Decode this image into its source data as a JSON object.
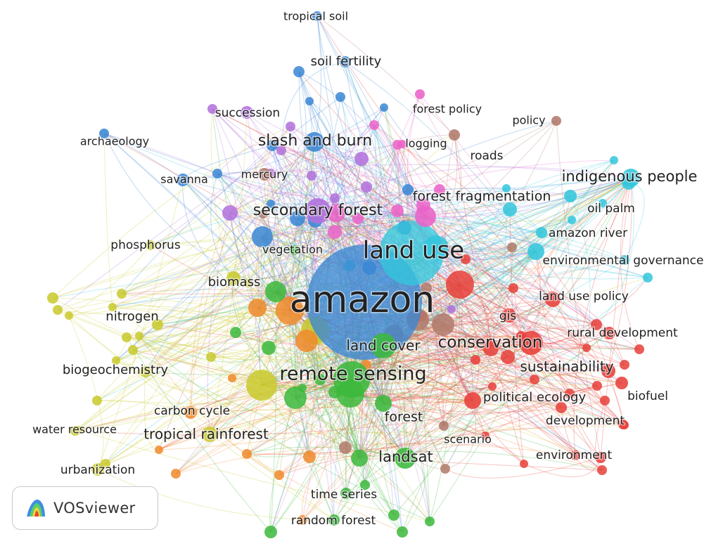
{
  "app": {
    "name": "VOSviewer",
    "logo_text": "VOSviewer"
  },
  "legend": {
    "colors": {
      "red": "#e8403a",
      "green": "#3cb83c",
      "blue": "#3a86d4",
      "yellow": "#c9c92c",
      "purple": "#b070dc",
      "cyan": "#33c6dc",
      "orange": "#f08a2c",
      "brown": "#b07a6a",
      "pink": "#ea62c8"
    }
  },
  "network": {
    "nodes": [
      {
        "id": "amazon",
        "label": "amazon",
        "cluster": "blue",
        "weight": 10
      },
      {
        "id": "land_use",
        "label": "land use",
        "cluster": "cyan",
        "weight": 6
      },
      {
        "id": "remote_sensing",
        "label": "remote sensing",
        "cluster": "green",
        "weight": 5
      },
      {
        "id": "land_cover",
        "label": "land cover",
        "cluster": "green",
        "weight": 3.4
      },
      {
        "id": "conservation",
        "label": "conservation",
        "cluster": "red",
        "weight": 4
      },
      {
        "id": "sustainability",
        "label": "sustainability",
        "cluster": "red",
        "weight": 3.2
      },
      {
        "id": "secondary_forest",
        "label": "secondary forest",
        "cluster": "purple",
        "weight": 3.8
      },
      {
        "id": "slash_and_burn",
        "label": "slash and burn",
        "cluster": "blue",
        "weight": 3.4
      },
      {
        "id": "indigenous_people",
        "label": "indigenous people",
        "cluster": "cyan",
        "weight": 3.4
      },
      {
        "id": "forest_fragmentation",
        "label": "forest fragmentation",
        "cluster": "pink",
        "weight": 3
      },
      {
        "id": "tropical_rainforest",
        "label": "tropical rainforest",
        "cluster": "yellow",
        "weight": 3
      },
      {
        "id": "landsat",
        "label": "landsat",
        "cluster": "green",
        "weight": 3
      },
      {
        "id": "political_ecology",
        "label": "political ecology",
        "cluster": "red",
        "weight": 2.8
      },
      {
        "id": "forest",
        "label": "forest",
        "cluster": "green",
        "weight": 2.8
      },
      {
        "id": "biomass",
        "label": "biomass",
        "cluster": "yellow",
        "weight": 2.6
      },
      {
        "id": "nitrogen",
        "label": "nitrogen",
        "cluster": "yellow",
        "weight": 2.6
      },
      {
        "id": "biogeochemistry",
        "label": "biogeochemistry",
        "cluster": "yellow",
        "weight": 2.6
      },
      {
        "id": "phosphorus",
        "label": "phosphorus",
        "cluster": "yellow",
        "weight": 2.4
      },
      {
        "id": "succession",
        "label": "succession",
        "cluster": "purple",
        "weight": 2.6
      },
      {
        "id": "soil_fertility",
        "label": "soil fertility",
        "cluster": "blue",
        "weight": 2.6
      },
      {
        "id": "tropical_soil",
        "label": "tropical soil",
        "cluster": "blue",
        "weight": 2.2
      },
      {
        "id": "archaeology",
        "label": "archaeology",
        "cluster": "blue",
        "weight": 2.2
      },
      {
        "id": "savanna",
        "label": "savanna",
        "cluster": "blue",
        "weight": 2.2
      },
      {
        "id": "mercury",
        "label": "mercury",
        "cluster": "brown",
        "weight": 2.4
      },
      {
        "id": "vegetation",
        "label": "vegetation",
        "cluster": "green",
        "weight": 2.2
      },
      {
        "id": "forest_policy",
        "label": "forest policy",
        "cluster": "pink",
        "weight": 2.2
      },
      {
        "id": "logging",
        "label": "logging",
        "cluster": "pink",
        "weight": 2.2
      },
      {
        "id": "policy",
        "label": "policy",
        "cluster": "brown",
        "weight": 2.2
      },
      {
        "id": "roads",
        "label": "roads",
        "cluster": "brown",
        "weight": 2.4
      },
      {
        "id": "oil_palm",
        "label": "oil palm",
        "cluster": "cyan",
        "weight": 2.2
      },
      {
        "id": "amazon_river",
        "label": "amazon river",
        "cluster": "cyan",
        "weight": 2.4
      },
      {
        "id": "environmental_governance",
        "label": "environmental governance",
        "cluster": "cyan",
        "weight": 2.4
      },
      {
        "id": "land_use_policy",
        "label": "land use policy",
        "cluster": "red",
        "weight": 2.4
      },
      {
        "id": "gis",
        "label": "gis",
        "cluster": "red",
        "weight": 2.4
      },
      {
        "id": "rural_development",
        "label": "rural development",
        "cluster": "red",
        "weight": 2.4
      },
      {
        "id": "biofuel",
        "label": "biofuel",
        "cluster": "red",
        "weight": 2.2
      },
      {
        "id": "development",
        "label": "development",
        "cluster": "red",
        "weight": 2.2
      },
      {
        "id": "environment",
        "label": "environment",
        "cluster": "red",
        "weight": 2.4
      },
      {
        "id": "scenario",
        "label": "scenario",
        "cluster": "brown",
        "weight": 2.2
      },
      {
        "id": "carbon_cycle",
        "label": "carbon cycle",
        "cluster": "orange",
        "weight": 2.4
      },
      {
        "id": "water_resource",
        "label": "water resource",
        "cluster": "yellow",
        "weight": 2.2
      },
      {
        "id": "urbanization",
        "label": "urbanization",
        "cluster": "yellow",
        "weight": 2.4
      },
      {
        "id": "time_series",
        "label": "time series",
        "cluster": "green",
        "weight": 2.2
      },
      {
        "id": "random_forest",
        "label": "random forest",
        "cluster": "green",
        "weight": 2.4
      }
    ]
  }
}
